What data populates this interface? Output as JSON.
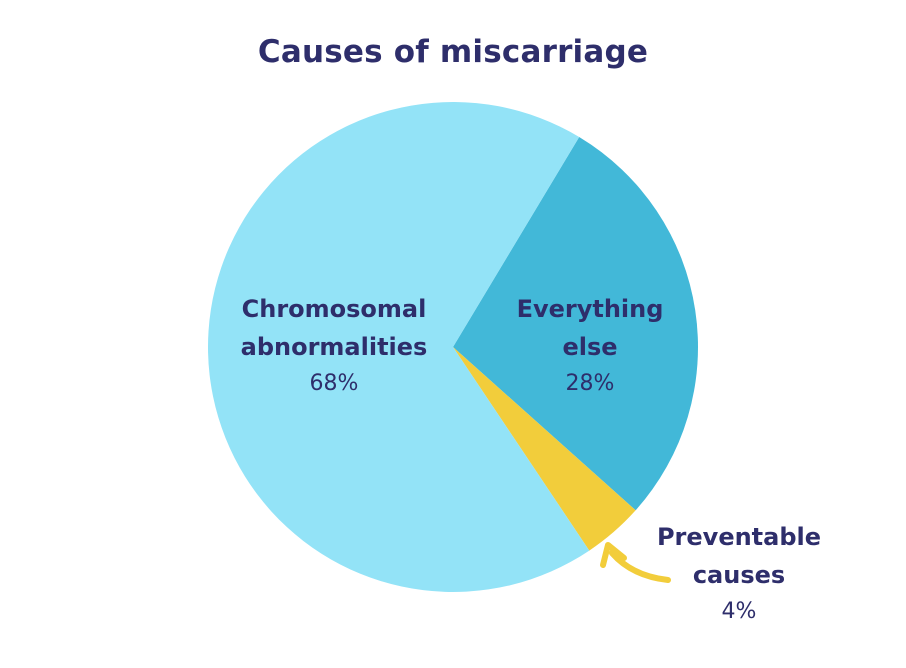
{
  "chart_data": {
    "type": "pie",
    "title": "Causes of miscarriage",
    "slices": [
      {
        "label_line1": "Chromosomal",
        "label_line2": "abnormalities",
        "value": 68,
        "display": "68%",
        "color": "#93e3f7"
      },
      {
        "label_line1": "Everything",
        "label_line2": "else",
        "value": 28,
        "display": "28%",
        "color": "#42b8d8"
      },
      {
        "label_line1": "Preventable",
        "label_line2": "causes",
        "value": 4,
        "display": "4%",
        "color": "#f2cd3b"
      }
    ]
  },
  "colors": {
    "title": "#2e2e6b",
    "arrow": "#f2cd3b"
  }
}
